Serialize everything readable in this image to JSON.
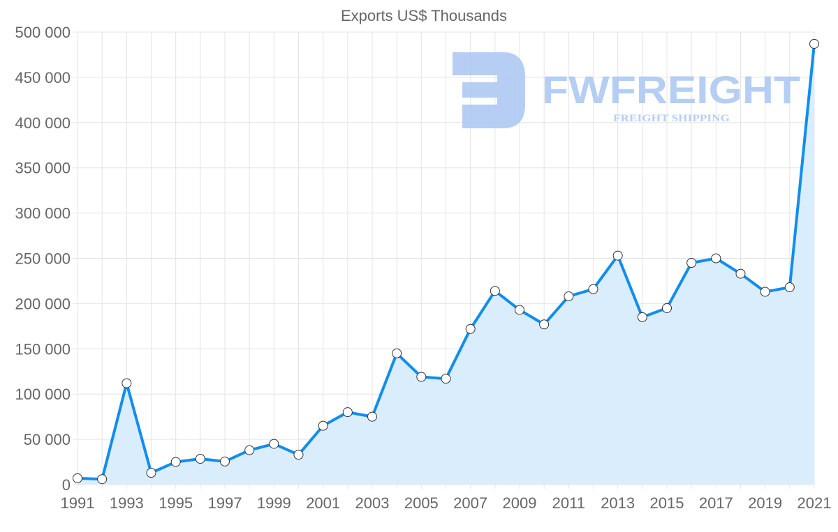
{
  "chart_data": {
    "type": "line",
    "title": "Exports US$ Thousands",
    "xlabel": "",
    "ylabel": "",
    "x": [
      1991,
      1992,
      1993,
      1994,
      1995,
      1996,
      1997,
      1998,
      1999,
      2000,
      2001,
      2002,
      2003,
      2004,
      2005,
      2006,
      2007,
      2008,
      2009,
      2010,
      2011,
      2012,
      2013,
      2014,
      2015,
      2016,
      2017,
      2018,
      2019,
      2020,
      2021
    ],
    "series": [
      {
        "name": "Exports US$ Thousands",
        "values": [
          7000,
          6000,
          112000,
          13000,
          25000,
          28500,
          25500,
          38000,
          45000,
          33000,
          65000,
          80000,
          75000,
          145000,
          119000,
          117000,
          172000,
          214000,
          193000,
          177000,
          208000,
          216000,
          253000,
          185000,
          195000,
          245000,
          250000,
          233000,
          213000,
          218000,
          487000
        ],
        "color": "#118DF0",
        "fill": "#DAEDFD"
      }
    ],
    "ylim": [
      0,
      500000
    ],
    "yticks": [
      "0",
      "50 000",
      "100 000",
      "150 000",
      "200 000",
      "250 000",
      "300 000",
      "350 000",
      "400 000",
      "450 000",
      "500 000"
    ],
    "xticks": [
      "1991",
      "1993",
      "1995",
      "1997",
      "1999",
      "2001",
      "2003",
      "2005",
      "2007",
      "2009",
      "2011",
      "2013",
      "2015",
      "2017",
      "2019",
      "2021"
    ],
    "grid": true,
    "legend": "none"
  },
  "watermark": {
    "brand": "FWFREIGHT",
    "tagline": "FREIGHT SHIPPING",
    "color": "#A9C6F2"
  }
}
